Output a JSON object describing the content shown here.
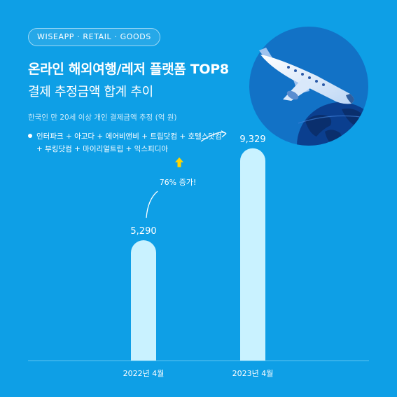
{
  "header": {
    "brand": "WISEAPP · RETAIL · GOODS",
    "title": "온라인 해외여행/레저 플랫폼 TOP8",
    "subtitle": "결제 추정금액 합계 추이",
    "note": "한국인 만 20세 이상 개인 결제금액 추정 (억 원)",
    "platforms_line1": "인터파크 + 아고다 + 에어비앤비 + 트립닷컴 + 호텔스닷컴",
    "platforms_line2": "+ 부킹닷컴 + 마이리얼트립 + 익스피디아"
  },
  "chart_data": {
    "type": "bar",
    "categories": [
      "2022년 4월",
      "2023년 4월"
    ],
    "values": [
      5290,
      9329
    ],
    "value_labels": [
      "5,290",
      "9,329"
    ],
    "annotation": "76% 증가!",
    "ylim": [
      0,
      10000
    ],
    "grid": false,
    "bar_color": "#c9f2ff",
    "axis_color": "#5cc3f0"
  },
  "colors": {
    "background": "#0e9fe6",
    "illustration_circle": "#1272c6",
    "arrow_yellow": "#ffd500"
  },
  "icons": [
    "airplane-icon",
    "globe-icon",
    "up-arrow-icon"
  ]
}
